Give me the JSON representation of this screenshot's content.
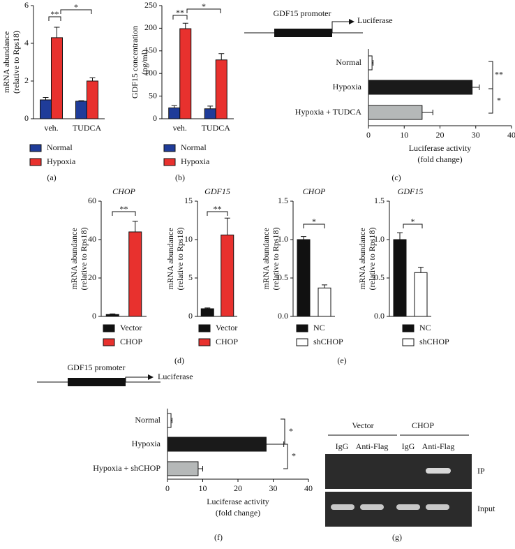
{
  "chart_data": [
    {
      "type": "bar",
      "ylabel": [
        "mRNA abundance",
        "(relative to Rps18)"
      ],
      "categories": [
        "veh.",
        "TUDCA"
      ],
      "series": [
        {
          "name": "Normal",
          "color": "#1f3c99",
          "values": [
            1.0,
            0.93
          ],
          "errors": [
            0.13,
            0.03
          ]
        },
        {
          "name": "Hypoxia",
          "color": "#e8312e",
          "values": [
            4.3,
            2.0
          ],
          "errors": [
            0.55,
            0.17
          ]
        }
      ],
      "ylim": [
        0,
        6
      ],
      "yticks": [
        0,
        2,
        4,
        6
      ],
      "significance": [
        "**",
        "*"
      ]
    },
    {
      "type": "bar",
      "ylabel": [
        "GDF15 concentration",
        "(pg/ml)"
      ],
      "categories": [
        "veh.",
        "TUDCA"
      ],
      "series": [
        {
          "name": "Normal",
          "color": "#1f3c99",
          "values": [
            24,
            22
          ],
          "errors": [
            5,
            6
          ]
        },
        {
          "name": "Hypoxia",
          "color": "#e8312e",
          "values": [
            199,
            130
          ],
          "errors": [
            12,
            14
          ]
        }
      ],
      "ylim": [
        0,
        250
      ],
      "yticks": [
        0,
        50,
        100,
        150,
        200,
        250
      ],
      "significance": [
        "**",
        "*"
      ]
    },
    {
      "type": "hbar",
      "promoter_label": "GDF15 promoter",
      "reporter_label": "Luciferase",
      "categories": [
        "Normal",
        "Hypoxia",
        "Hypoxia + TUDCA"
      ],
      "values": [
        1,
        29,
        15
      ],
      "errors": [
        0.3,
        2,
        3
      ],
      "colors": [
        "#ffffff",
        "#1a1a1a",
        "#b5b8b8"
      ],
      "xlim": [
        0,
        40
      ],
      "xticks": [
        0,
        10,
        20,
        30,
        40
      ],
      "xlabel": [
        "Luciferase activity",
        "(fold change)"
      ],
      "significance": [
        "**",
        "*"
      ]
    },
    {
      "type": "bar",
      "title": "CHOP",
      "ylabel": [
        "mRNA abundance",
        "(relative to Rps18)"
      ],
      "categories": [
        "Vector",
        "CHOP"
      ],
      "values": [
        1,
        44
      ],
      "errors": [
        0.3,
        5.5
      ],
      "colors": [
        "#111111",
        "#e8312e"
      ],
      "ylim": [
        0,
        60
      ],
      "yticks": [
        0,
        20,
        40,
        60
      ],
      "significance": [
        "**"
      ]
    },
    {
      "type": "bar",
      "title": "GDF15",
      "ylabel": [
        "mRNA abundance",
        "(relative to Rps18)"
      ],
      "categories": [
        "Vector",
        "CHOP"
      ],
      "values": [
        1,
        10.6
      ],
      "errors": [
        0.1,
        2.2
      ],
      "colors": [
        "#111111",
        "#e8312e"
      ],
      "ylim": [
        0,
        15
      ],
      "yticks": [
        0,
        5,
        10,
        15
      ],
      "significance": [
        "**"
      ]
    },
    {
      "type": "bar",
      "title": "CHOP",
      "ylabel": [
        "mRNA abundance",
        "(relative to Rps18)"
      ],
      "categories": [
        "NC",
        "shCHOP"
      ],
      "values": [
        1.0,
        0.37
      ],
      "errors": [
        0.04,
        0.04
      ],
      "colors": [
        "#111111",
        "#ffffff"
      ],
      "ylim": [
        0,
        1.5
      ],
      "yticks": [
        {
          "value": 0,
          "label": "0.0"
        },
        0.5,
        {
          "value": 1,
          "label": "1.0"
        },
        1.5
      ],
      "significance": [
        "*"
      ]
    },
    {
      "type": "bar",
      "title": "GDF15",
      "ylabel": [
        "mRNA abundance",
        "(relative to Rps18)"
      ],
      "categories": [
        "NC",
        "shCHOP"
      ],
      "values": [
        1.0,
        0.57
      ],
      "errors": [
        0.09,
        0.07
      ],
      "colors": [
        "#111111",
        "#ffffff"
      ],
      "ylim": [
        0,
        1.5
      ],
      "yticks": [
        {
          "value": 0,
          "label": "0.0"
        },
        0.5,
        {
          "value": 1,
          "label": "1.0"
        },
        1.5
      ],
      "significance": [
        "*"
      ]
    },
    {
      "type": "hbar",
      "promoter_label": "GDF15 promoter",
      "reporter_label": "Luciferase",
      "categories": [
        "Normal",
        "Hypoxia",
        "Hypoxia + shCHOP"
      ],
      "values": [
        1,
        28,
        8.7
      ],
      "errors": [
        0.3,
        5,
        1.3
      ],
      "colors": [
        "#ffffff",
        "#1a1a1a",
        "#b5b8b8"
      ],
      "xlim": [
        0,
        40
      ],
      "xticks": [
        0,
        10,
        20,
        30,
        40
      ],
      "xlabel": [
        "Luciferase activity",
        "(fold change)"
      ],
      "significance": [
        "*",
        "*"
      ]
    }
  ],
  "gel": {
    "groups": [
      "Vector",
      "CHOP"
    ],
    "lanes": [
      "IgG",
      "Anti-Flag",
      "IgG",
      "Anti-Flag"
    ],
    "rows": [
      "IP",
      "Input"
    ]
  },
  "panel_labels": [
    "(a)",
    "(b)",
    "(c)",
    "(d)",
    "(e)",
    "(f)",
    "(g)"
  ]
}
